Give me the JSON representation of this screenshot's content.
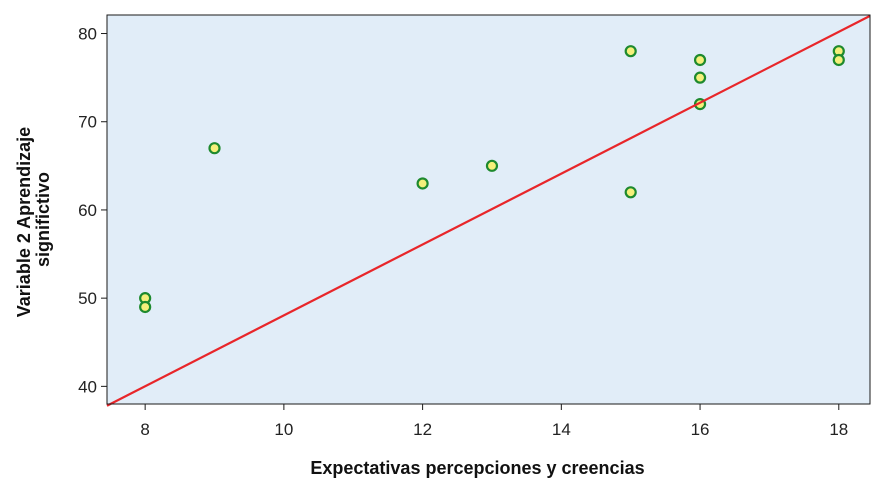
{
  "chart_data": {
    "type": "scatter",
    "xlabel": "Expectativas percepciones y creencias",
    "ylabel_lines": [
      "Variable 2 Aprendizaje",
      "significtivo"
    ],
    "xlim": [
      7.45,
      18.45
    ],
    "ylim": [
      38.0,
      82.1
    ],
    "x_ticks": [
      8,
      10,
      12,
      14,
      16,
      18
    ],
    "y_ticks": [
      40,
      50,
      60,
      70,
      80
    ],
    "grid": false,
    "legend": "none",
    "points": [
      {
        "x": 8,
        "y": 50
      },
      {
        "x": 8,
        "y": 49
      },
      {
        "x": 9,
        "y": 67
      },
      {
        "x": 12,
        "y": 63
      },
      {
        "x": 13,
        "y": 65
      },
      {
        "x": 15,
        "y": 78
      },
      {
        "x": 15,
        "y": 62
      },
      {
        "x": 16,
        "y": 77
      },
      {
        "x": 16,
        "y": 75
      },
      {
        "x": 16,
        "y": 72
      },
      {
        "x": 18,
        "y": 78
      },
      {
        "x": 18,
        "y": 77
      }
    ],
    "fit_line": {
      "x": [
        7.45,
        18.45
      ],
      "y": [
        37.8,
        82.0
      ]
    },
    "colors": {
      "plot_background": "#e1edf8",
      "marker_fill": "#f5f07a",
      "marker_edge": "#1e8a2e",
      "fit_line": "#e8262a",
      "frame": "#1a1a1a"
    }
  }
}
